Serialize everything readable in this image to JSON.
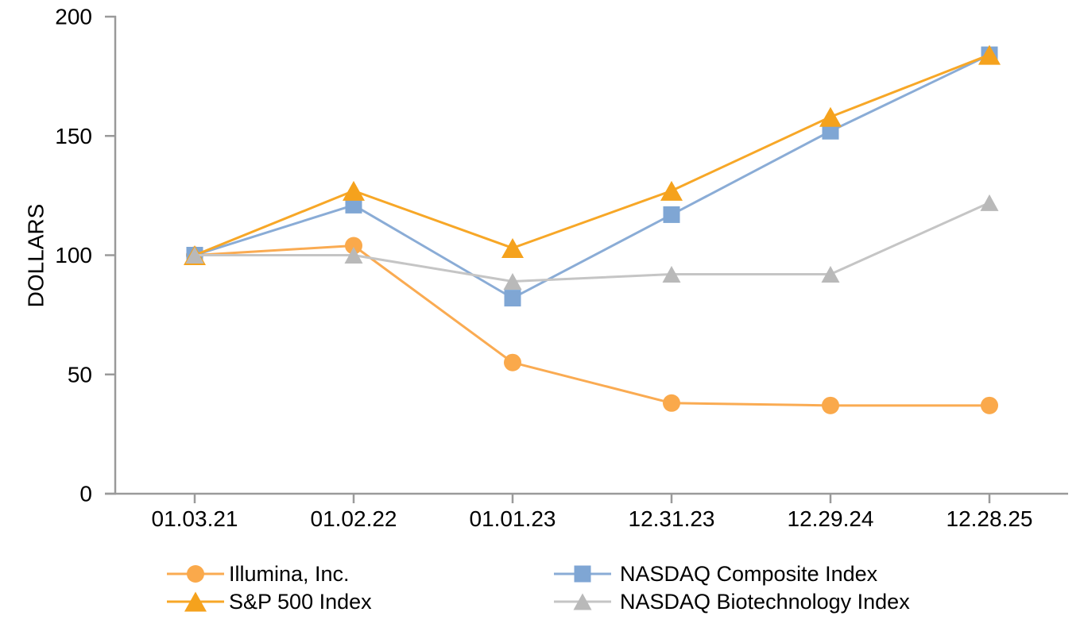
{
  "chart_data": {
    "type": "line",
    "title": "",
    "xlabel": "",
    "ylabel": "DOLLARS",
    "ylim": [
      0,
      200
    ],
    "yticks": [
      0,
      50,
      100,
      150,
      200
    ],
    "grid": false,
    "legend_position": "bottom",
    "axis_color": "#9a9a9a",
    "text_color": "#000000",
    "categories": [
      "01.03.21",
      "01.02.22",
      "01.01.23",
      "12.31.23",
      "12.29.24",
      "12.28.25"
    ],
    "series": [
      {
        "name": "Illumina, Inc.",
        "marker": "circle",
        "color": "#FAA94B",
        "line_color": "#FAAB52",
        "values": [
          100,
          104,
          55,
          38,
          37,
          37
        ]
      },
      {
        "name": "NASDAQ Composite Index",
        "marker": "square",
        "color": "#7FA6D4",
        "line_color": "#8AACD6",
        "values": [
          100,
          121,
          82,
          117,
          152,
          184
        ]
      },
      {
        "name": "S&P 500 Index",
        "marker": "triangle",
        "color": "#F5A21D",
        "line_color": "#F7A727",
        "values": [
          100,
          127,
          103,
          127,
          158,
          184
        ]
      },
      {
        "name": "NASDAQ Biotechnology Index",
        "marker": "triangle",
        "color": "#B9B9B9",
        "line_color": "#C5C5C5",
        "values": [
          100,
          100,
          89,
          92,
          92,
          122
        ]
      }
    ]
  }
}
